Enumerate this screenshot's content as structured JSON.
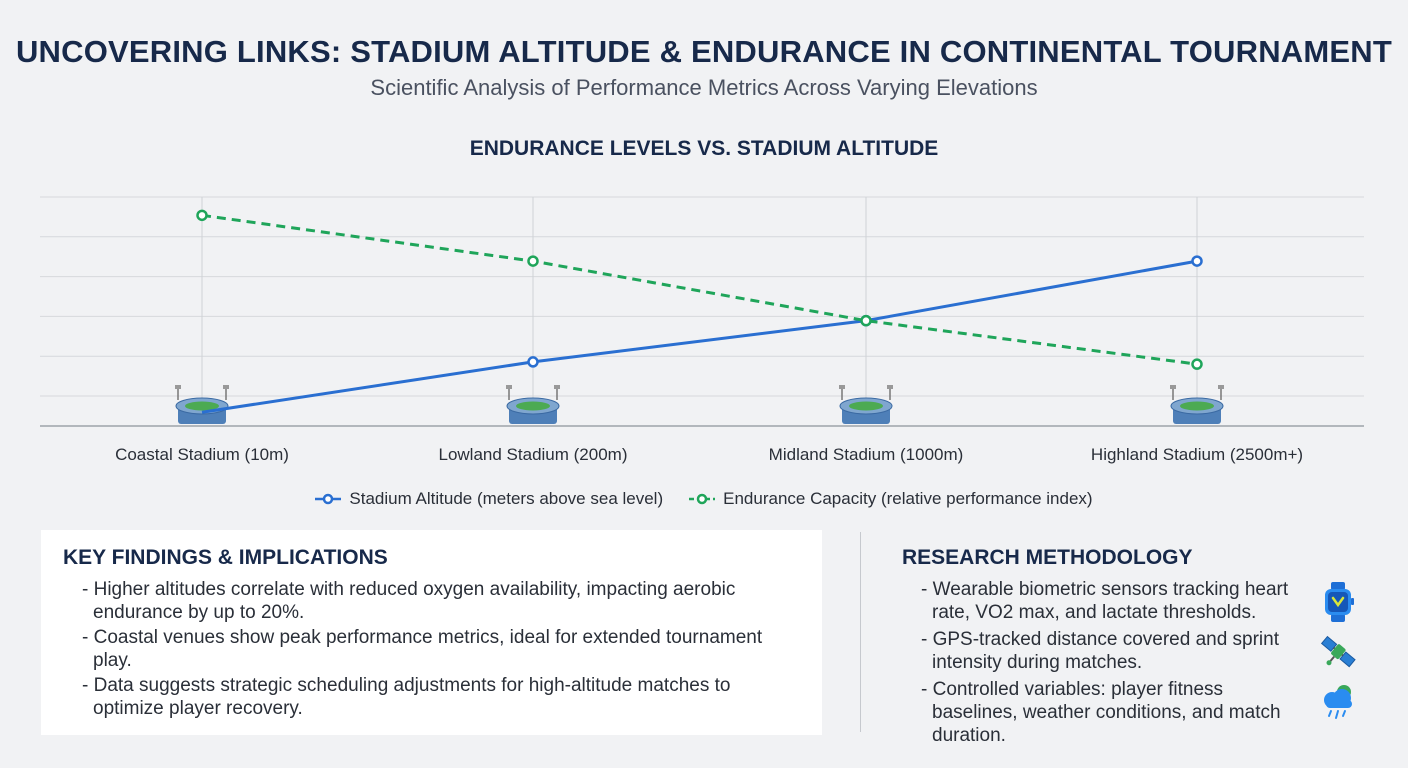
{
  "header": {
    "title": "UNCOVERING LINKS: STADIUM ALTITUDE & ENDURANCE IN CONTINENTAL TOURNAMENT",
    "subtitle": "Scientific Analysis of Performance Metrics Across Varying Elevations"
  },
  "chart_data": {
    "type": "line",
    "title": "ENDURANCE LEVELS VS. STADIUM ALTITUDE",
    "xlabel": "",
    "ylabel": "",
    "categories": [
      "Coastal Stadium (10m)",
      "Lowland Stadium (200m)",
      "Midland Stadium (1000m)",
      "Highland Stadium (2500m+)"
    ],
    "ylim": [
      0,
      10
    ],
    "grid": true,
    "legend_position": "bottom",
    "category_icon": "stadium-icon",
    "series": [
      {
        "name": "Stadium Altitude (meters above sea level)",
        "values": [
          0.6,
          2.8,
          4.6,
          7.2
        ],
        "color": "#2a6fd1",
        "line_style": "solid"
      },
      {
        "name": "Endurance Capacity (relative performance index)",
        "values": [
          9.2,
          7.2,
          4.6,
          2.7
        ],
        "color": "#1fa55a",
        "line_style": "dashed"
      }
    ]
  },
  "findings": {
    "heading": "KEY FINDINGS & IMPLICATIONS",
    "items": [
      "- Higher altitudes correlate with reduced oxygen availability, impacting aerobic endurance by up to 20%.",
      "- Coastal venues show peak performance metrics, ideal for extended tournament play.",
      "- Data suggests strategic scheduling adjustments for high-altitude matches to optimize player recovery."
    ]
  },
  "methodology": {
    "heading": "RESEARCH METHODOLOGY",
    "items": [
      {
        "text": "- Wearable biometric sensors tracking heart rate, VO2 max, and lactate thresholds.",
        "icon": "smartwatch-icon"
      },
      {
        "text": "- GPS-tracked distance covered and sprint intensity during matches.",
        "icon": "satellite-icon"
      },
      {
        "text": "- Controlled variables: player fitness baselines, weather conditions, and match duration.",
        "icon": "weather-icon"
      }
    ]
  }
}
